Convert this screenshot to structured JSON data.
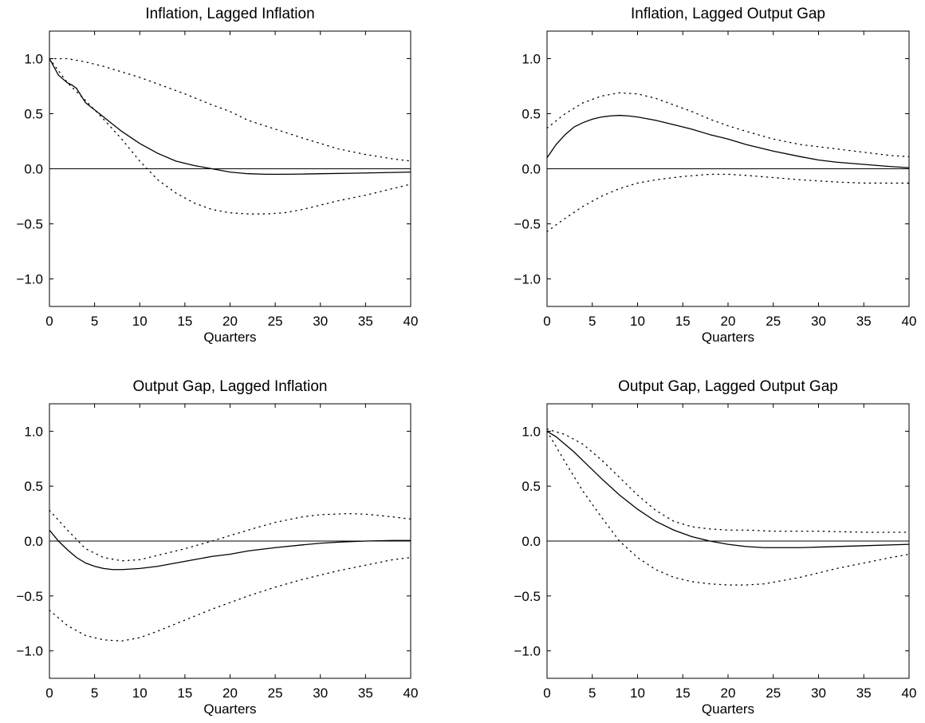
{
  "chart_data": [
    {
      "type": "line",
      "title": "Inflation, Lagged Inflation",
      "xlabel": "Quarters",
      "ylabel": "",
      "xlim": [
        0,
        40
      ],
      "ylim": [
        -1.25,
        1.25
      ],
      "xticks": [
        0,
        5,
        10,
        15,
        20,
        25,
        30,
        35,
        40
      ],
      "xtick_labels": [
        "0",
        "5",
        "10",
        "15",
        "20",
        "25",
        "30",
        "35",
        "40"
      ],
      "yticks": [
        1.0,
        0.5,
        0.0,
        -0.5,
        -1.0
      ],
      "ytick_labels": [
        "1.0",
        "0.5",
        "0.0",
        "−0.5",
        "−1.0"
      ],
      "zero_line": true,
      "grid": false,
      "series": [
        {
          "style": "solid",
          "x": [
            0,
            1,
            2,
            2.5,
            3,
            4,
            6,
            8,
            10,
            12,
            14,
            16,
            18,
            20,
            22,
            24,
            26,
            28,
            30,
            34,
            40
          ],
          "y": [
            1.0,
            0.85,
            0.78,
            0.76,
            0.73,
            0.6,
            0.47,
            0.34,
            0.23,
            0.14,
            0.07,
            0.03,
            0.0,
            -0.03,
            -0.045,
            -0.05,
            -0.05,
            -0.048,
            -0.045,
            -0.04,
            -0.03
          ]
        },
        {
          "style": "dotted",
          "x": [
            0,
            2,
            4,
            6,
            8,
            10,
            12,
            15,
            18,
            20,
            22,
            25,
            28,
            30,
            32,
            35,
            38,
            40
          ],
          "y": [
            1.0,
            1.0,
            0.97,
            0.93,
            0.88,
            0.83,
            0.77,
            0.68,
            0.58,
            0.52,
            0.44,
            0.36,
            0.28,
            0.23,
            0.18,
            0.13,
            0.09,
            0.07
          ]
        },
        {
          "style": "dotted",
          "x": [
            0,
            2,
            4,
            6,
            8,
            10,
            12,
            14,
            16,
            18,
            20,
            22,
            24,
            26,
            28,
            30,
            32,
            35,
            38,
            40
          ],
          "y": [
            1.0,
            0.78,
            0.62,
            0.45,
            0.27,
            0.07,
            -0.1,
            -0.22,
            -0.31,
            -0.37,
            -0.4,
            -0.41,
            -0.41,
            -0.4,
            -0.37,
            -0.33,
            -0.29,
            -0.24,
            -0.18,
            -0.14
          ]
        }
      ]
    },
    {
      "type": "line",
      "title": "Inflation, Lagged Output Gap",
      "xlabel": "Quarters",
      "ylabel": "",
      "xlim": [
        0,
        40
      ],
      "ylim": [
        -1.25,
        1.25
      ],
      "xticks": [
        0,
        5,
        10,
        15,
        20,
        25,
        30,
        35,
        40
      ],
      "xtick_labels": [
        "0",
        "5",
        "10",
        "15",
        "20",
        "25",
        "30",
        "35",
        "40"
      ],
      "yticks": [
        1.0,
        0.5,
        0.0,
        -0.5,
        -1.0
      ],
      "ytick_labels": [
        "1.0",
        "0.5",
        "0.0",
        "−0.5",
        "−1.0"
      ],
      "zero_line": true,
      "grid": false,
      "series": [
        {
          "style": "solid",
          "x": [
            0,
            1,
            2,
            3,
            4,
            5,
            6,
            7,
            8,
            9,
            10,
            12,
            14,
            16,
            18,
            20,
            22,
            25,
            28,
            30,
            32,
            35,
            38,
            40
          ],
          "y": [
            0.1,
            0.22,
            0.31,
            0.38,
            0.42,
            0.45,
            0.47,
            0.48,
            0.485,
            0.48,
            0.47,
            0.44,
            0.4,
            0.36,
            0.31,
            0.27,
            0.22,
            0.16,
            0.11,
            0.08,
            0.06,
            0.04,
            0.02,
            0.01
          ]
        },
        {
          "style": "dotted",
          "x": [
            0,
            2,
            4,
            6,
            8,
            10,
            12,
            14,
            16,
            18,
            20,
            22,
            25,
            28,
            30,
            32,
            35,
            38,
            40
          ],
          "y": [
            0.37,
            0.5,
            0.6,
            0.66,
            0.69,
            0.68,
            0.64,
            0.58,
            0.52,
            0.45,
            0.39,
            0.34,
            0.27,
            0.22,
            0.2,
            0.18,
            0.15,
            0.12,
            0.11
          ]
        },
        {
          "style": "dotted",
          "x": [
            0,
            2,
            4,
            6,
            8,
            10,
            12,
            15,
            18,
            20,
            22,
            25,
            28,
            30,
            32,
            35,
            38,
            40
          ],
          "y": [
            -0.57,
            -0.45,
            -0.34,
            -0.25,
            -0.18,
            -0.13,
            -0.1,
            -0.07,
            -0.05,
            -0.05,
            -0.06,
            -0.08,
            -0.1,
            -0.11,
            -0.12,
            -0.13,
            -0.13,
            -0.13
          ]
        }
      ]
    },
    {
      "type": "line",
      "title": "Output Gap, Lagged Inflation",
      "xlabel": "Quarters",
      "ylabel": "",
      "xlim": [
        0,
        40
      ],
      "ylim": [
        -1.25,
        1.25
      ],
      "xticks": [
        0,
        5,
        10,
        15,
        20,
        25,
        30,
        35,
        40
      ],
      "xtick_labels": [
        "0",
        "5",
        "10",
        "15",
        "20",
        "25",
        "30",
        "35",
        "40"
      ],
      "yticks": [
        1.0,
        0.5,
        0.0,
        -0.5,
        -1.0
      ],
      "ytick_labels": [
        "1.0",
        "0.5",
        "0.0",
        "−0.5",
        "−1.0"
      ],
      "zero_line": true,
      "grid": false,
      "series": [
        {
          "style": "solid",
          "x": [
            0,
            1,
            2,
            3,
            4,
            5,
            6,
            7,
            8,
            9,
            10,
            12,
            14,
            16,
            18,
            20,
            22,
            25,
            28,
            30,
            32,
            35,
            38,
            40
          ],
          "y": [
            0.1,
            0.0,
            -0.08,
            -0.15,
            -0.2,
            -0.23,
            -0.25,
            -0.26,
            -0.26,
            -0.255,
            -0.25,
            -0.23,
            -0.2,
            -0.17,
            -0.14,
            -0.12,
            -0.09,
            -0.06,
            -0.035,
            -0.02,
            -0.01,
            0.0,
            0.005,
            0.005
          ]
        },
        {
          "style": "dotted",
          "x": [
            0,
            2,
            4,
            6,
            8,
            10,
            12,
            15,
            18,
            20,
            22,
            25,
            28,
            30,
            33,
            35,
            38,
            40
          ],
          "y": [
            0.28,
            0.1,
            -0.07,
            -0.15,
            -0.18,
            -0.17,
            -0.13,
            -0.07,
            0.0,
            0.05,
            0.1,
            0.17,
            0.22,
            0.24,
            0.25,
            0.245,
            0.22,
            0.2
          ]
        },
        {
          "style": "dotted",
          "x": [
            0,
            2,
            4,
            6,
            8,
            10,
            12,
            15,
            18,
            20,
            22,
            25,
            28,
            30,
            32,
            35,
            38,
            40
          ],
          "y": [
            -0.63,
            -0.77,
            -0.86,
            -0.9,
            -0.91,
            -0.88,
            -0.82,
            -0.72,
            -0.62,
            -0.56,
            -0.5,
            -0.42,
            -0.35,
            -0.31,
            -0.27,
            -0.22,
            -0.17,
            -0.15
          ]
        }
      ]
    },
    {
      "type": "line",
      "title": "Output Gap, Lagged Output Gap",
      "xlabel": "Quarters",
      "ylabel": "",
      "xlim": [
        0,
        40
      ],
      "ylim": [
        -1.25,
        1.25
      ],
      "xticks": [
        0,
        5,
        10,
        15,
        20,
        25,
        30,
        35,
        40
      ],
      "xtick_labels": [
        "0",
        "5",
        "10",
        "15",
        "20",
        "25",
        "30",
        "35",
        "40"
      ],
      "yticks": [
        1.0,
        0.5,
        0.0,
        -0.5,
        -1.0
      ],
      "ytick_labels": [
        "1.0",
        "0.5",
        "0.0",
        "−0.5",
        "−1.0"
      ],
      "zero_line": true,
      "grid": false,
      "series": [
        {
          "style": "solid",
          "x": [
            0,
            1,
            2,
            3,
            4,
            6,
            8,
            10,
            12,
            14,
            16,
            18,
            20,
            22,
            24,
            26,
            28,
            30,
            34,
            40
          ],
          "y": [
            1.0,
            0.95,
            0.88,
            0.81,
            0.73,
            0.57,
            0.42,
            0.29,
            0.18,
            0.1,
            0.04,
            0.0,
            -0.03,
            -0.05,
            -0.06,
            -0.06,
            -0.06,
            -0.055,
            -0.045,
            -0.03
          ]
        },
        {
          "style": "dotted",
          "x": [
            0,
            2,
            4,
            6,
            8,
            10,
            12,
            14,
            16,
            18,
            20,
            22,
            25,
            28,
            30,
            35,
            40
          ],
          "y": [
            1.02,
            0.97,
            0.88,
            0.74,
            0.58,
            0.42,
            0.28,
            0.18,
            0.13,
            0.11,
            0.1,
            0.1,
            0.09,
            0.09,
            0.09,
            0.08,
            0.08
          ]
        },
        {
          "style": "dotted",
          "x": [
            0,
            2,
            4,
            6,
            8,
            10,
            12,
            14,
            16,
            18,
            20,
            22,
            24,
            26,
            28,
            30,
            32,
            35,
            38,
            40
          ],
          "y": [
            1.0,
            0.72,
            0.45,
            0.22,
            0.0,
            -0.15,
            -0.26,
            -0.33,
            -0.37,
            -0.39,
            -0.4,
            -0.4,
            -0.39,
            -0.36,
            -0.33,
            -0.29,
            -0.25,
            -0.2,
            -0.15,
            -0.12
          ]
        }
      ]
    }
  ]
}
